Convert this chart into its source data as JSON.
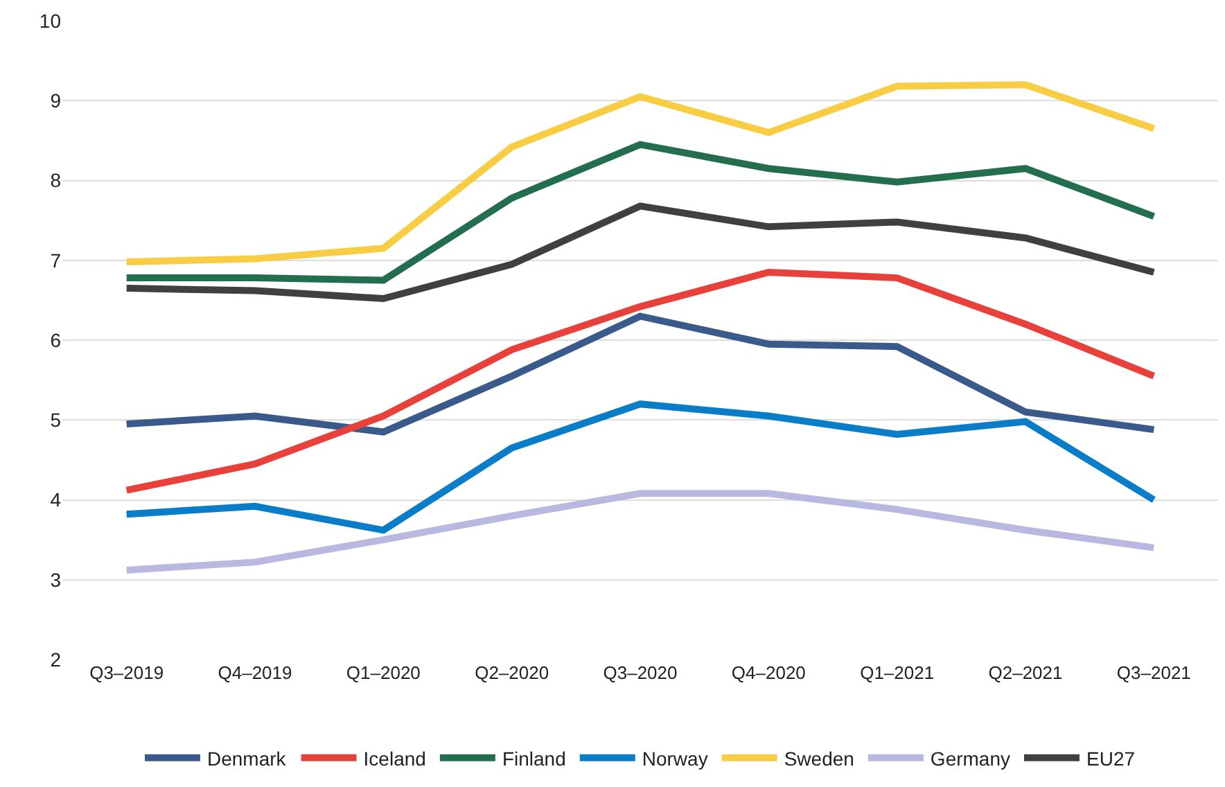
{
  "chart_data": {
    "type": "line",
    "categories": [
      "Q3–2019",
      "Q4–2019",
      "Q1–2020",
      "Q2–2020",
      "Q3–2020",
      "Q4–2020",
      "Q1–2021",
      "Q2–2021",
      "Q3–2021"
    ],
    "series": [
      {
        "name": "Denmark",
        "color": "#3a5a8c",
        "values": [
          4.95,
          5.05,
          4.85,
          5.55,
          6.3,
          5.95,
          5.92,
          5.1,
          4.88
        ]
      },
      {
        "name": "Iceland",
        "color": "#e8403a",
        "values": [
          4.12,
          4.45,
          5.05,
          5.88,
          6.42,
          6.85,
          6.78,
          6.2,
          5.55
        ]
      },
      {
        "name": "Finland",
        "color": "#226e4e",
        "values": [
          6.78,
          6.78,
          6.75,
          7.78,
          8.45,
          8.15,
          7.98,
          8.15,
          7.55
        ]
      },
      {
        "name": "Norway",
        "color": "#0a7dc8",
        "values": [
          3.82,
          3.92,
          3.62,
          4.65,
          5.2,
          5.05,
          4.82,
          4.98,
          4.0
        ]
      },
      {
        "name": "Sweden",
        "color": "#f9cd43",
        "values": [
          6.98,
          7.02,
          7.15,
          8.42,
          9.05,
          8.6,
          9.18,
          9.2,
          8.65
        ]
      },
      {
        "name": "Germany",
        "color": "#b9b8e0",
        "values": [
          3.12,
          3.22,
          3.5,
          3.8,
          4.08,
          4.08,
          3.88,
          3.62,
          3.4
        ]
      },
      {
        "name": "EU27",
        "color": "#404040",
        "values": [
          6.65,
          6.62,
          6.52,
          6.95,
          7.68,
          7.42,
          7.48,
          7.28,
          6.85
        ]
      }
    ],
    "ylim": [
      2,
      10
    ],
    "yticks": [
      2,
      3,
      4,
      5,
      6,
      7,
      8,
      9,
      10
    ],
    "grid": "y",
    "legend": "bottom",
    "marker": "none",
    "line_style": "solid"
  }
}
